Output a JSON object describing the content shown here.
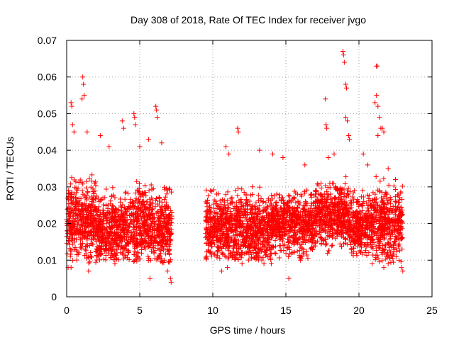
{
  "chart_data": {
    "type": "scatter",
    "title": "Day 308 of 2018, Rate Of TEC Index for receiver jvgo",
    "xlabel": "GPS time / hours",
    "ylabel": "ROTI / TECUs",
    "xlim": [
      0,
      25
    ],
    "ylim": [
      0,
      0.07
    ],
    "xticks": [
      0,
      5,
      10,
      15,
      20,
      25
    ],
    "xtick_labels": [
      "0",
      "5",
      "10",
      "15",
      "20",
      "25"
    ],
    "yticks": [
      0,
      0.01,
      0.02,
      0.03,
      0.04,
      0.05,
      0.06,
      0.07
    ],
    "ytick_labels": [
      "0",
      "0.01",
      "0.02",
      "0.03",
      "0.04",
      "0.05",
      "0.06",
      "0.07"
    ],
    "grid": true,
    "marker": "+",
    "series": [
      {
        "name": "ROTI",
        "color": "#ff0000",
        "segments": [
          {
            "x_start": 0.0,
            "x_end": 7.2
          },
          {
            "x_start": 9.5,
            "x_end": 23.0
          }
        ],
        "points": [
          [
            0.3,
            0.053
          ],
          [
            0.35,
            0.052
          ],
          [
            1.1,
            0.06
          ],
          [
            1.15,
            0.058
          ],
          [
            1.2,
            0.055
          ],
          [
            1.05,
            0.054
          ],
          [
            0.4,
            0.047
          ],
          [
            0.5,
            0.045
          ],
          [
            1.4,
            0.045
          ],
          [
            2.3,
            0.044
          ],
          [
            3.8,
            0.048
          ],
          [
            3.9,
            0.046
          ],
          [
            4.6,
            0.05
          ],
          [
            4.65,
            0.049
          ],
          [
            4.7,
            0.047
          ],
          [
            6.1,
            0.052
          ],
          [
            6.15,
            0.051
          ],
          [
            6.2,
            0.049
          ],
          [
            5.6,
            0.043
          ],
          [
            5.0,
            0.041
          ],
          [
            2.9,
            0.041
          ],
          [
            6.5,
            0.042
          ],
          [
            0.1,
            0.008
          ],
          [
            0.3,
            0.008
          ],
          [
            1.5,
            0.007
          ],
          [
            3.3,
            0.009
          ],
          [
            5.7,
            0.005
          ],
          [
            7.1,
            0.005
          ],
          [
            7.15,
            0.004
          ],
          [
            6.9,
            0.007
          ],
          [
            11.7,
            0.046
          ],
          [
            11.75,
            0.045
          ],
          [
            10.9,
            0.041
          ],
          [
            11.1,
            0.039
          ],
          [
            13.2,
            0.04
          ],
          [
            14.1,
            0.039
          ],
          [
            14.8,
            0.038
          ],
          [
            16.3,
            0.036
          ],
          [
            17.9,
            0.038
          ],
          [
            18.3,
            0.039
          ],
          [
            10.6,
            0.007
          ],
          [
            11.0,
            0.008
          ],
          [
            12.0,
            0.009
          ],
          [
            15.2,
            0.005
          ],
          [
            13.5,
            0.009
          ],
          [
            16.0,
            0.01
          ],
          [
            14.0,
            0.009
          ],
          [
            17.7,
            0.054
          ],
          [
            17.75,
            0.047
          ],
          [
            17.8,
            0.046
          ],
          [
            18.9,
            0.067
          ],
          [
            18.95,
            0.066
          ],
          [
            19.0,
            0.064
          ],
          [
            19.1,
            0.058
          ],
          [
            19.15,
            0.057
          ],
          [
            19.1,
            0.049
          ],
          [
            19.2,
            0.048
          ],
          [
            19.3,
            0.044
          ],
          [
            19.35,
            0.043
          ],
          [
            21.2,
            0.063
          ],
          [
            21.25,
            0.063
          ],
          [
            21.1,
            0.053
          ],
          [
            21.2,
            0.055
          ],
          [
            21.3,
            0.052
          ],
          [
            21.4,
            0.049
          ],
          [
            21.5,
            0.046
          ],
          [
            21.6,
            0.046
          ],
          [
            21.3,
            0.044
          ],
          [
            21.7,
            0.045
          ],
          [
            22.0,
            0.035
          ],
          [
            22.5,
            0.032
          ],
          [
            20.3,
            0.039
          ],
          [
            20.6,
            0.036
          ],
          [
            20.9,
            0.009
          ],
          [
            21.7,
            0.008
          ],
          [
            22.0,
            0.009
          ],
          [
            22.9,
            0.008
          ],
          [
            23.0,
            0.007
          ]
        ],
        "density_bands": [
          {
            "x_start": 0.0,
            "x_end": 2.0,
            "y_low": 0.009,
            "y_high": 0.036,
            "y_center": 0.021
          },
          {
            "x_start": 2.0,
            "x_end": 4.0,
            "y_low": 0.01,
            "y_high": 0.033,
            "y_center": 0.018
          },
          {
            "x_start": 4.0,
            "x_end": 7.2,
            "y_low": 0.009,
            "y_high": 0.034,
            "y_center": 0.019
          },
          {
            "x_start": 9.5,
            "x_end": 11.0,
            "y_low": 0.01,
            "y_high": 0.033,
            "y_center": 0.019
          },
          {
            "x_start": 11.0,
            "x_end": 14.0,
            "y_low": 0.01,
            "y_high": 0.034,
            "y_center": 0.018
          },
          {
            "x_start": 14.0,
            "x_end": 17.0,
            "y_low": 0.01,
            "y_high": 0.03,
            "y_center": 0.02
          },
          {
            "x_start": 17.0,
            "x_end": 19.5,
            "y_low": 0.01,
            "y_high": 0.033,
            "y_center": 0.022
          },
          {
            "x_start": 19.5,
            "x_end": 21.0,
            "y_low": 0.011,
            "y_high": 0.032,
            "y_center": 0.019
          },
          {
            "x_start": 21.0,
            "x_end": 23.0,
            "y_low": 0.009,
            "y_high": 0.034,
            "y_center": 0.02
          }
        ]
      }
    ]
  }
}
